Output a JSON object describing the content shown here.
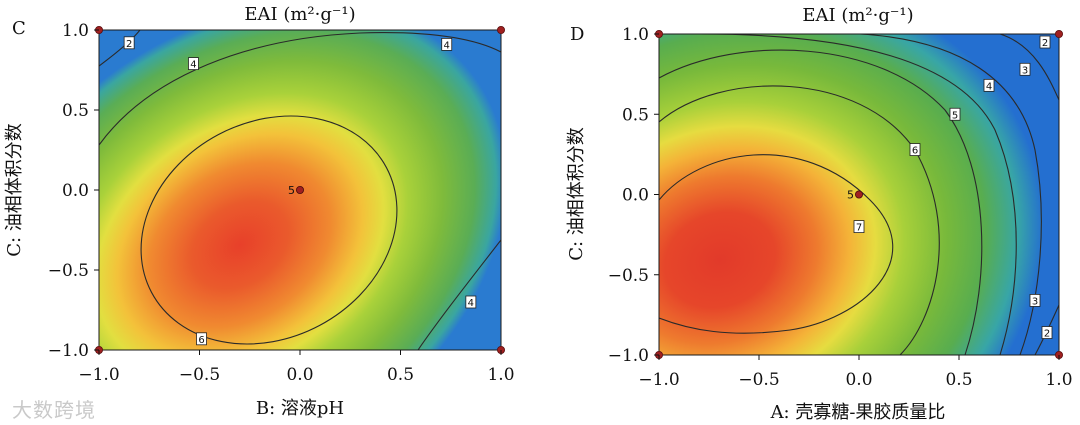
{
  "watermark": "大数跨境",
  "chart_data": [
    {
      "type": "contour",
      "panel_label": "C",
      "title": "EAI (m²·g⁻¹)",
      "xlabel": "B: 溶液pH",
      "ylabel": "C: 油相体积分数",
      "xlim": [
        -1.0,
        1.0
      ],
      "ylim": [
        -1.0,
        1.0
      ],
      "xticks": [
        "−1.0",
        "−0.5",
        "0.0",
        "0.5",
        "1.0"
      ],
      "yticks": [
        "−1.0",
        "−0.5",
        "0.0",
        "0.5",
        "1.0"
      ],
      "center_point": {
        "x": 0.0,
        "y": 0.0,
        "label": "5"
      },
      "contour_labels": [
        {
          "x": -0.85,
          "y": 0.92,
          "label": "2"
        },
        {
          "x": -0.53,
          "y": 0.79,
          "label": "4"
        },
        {
          "x": 0.73,
          "y": 0.91,
          "label": "4"
        },
        {
          "x": 0.85,
          "y": -0.7,
          "label": "4"
        },
        {
          "x": -0.49,
          "y": -0.93,
          "label": "6"
        }
      ],
      "corner_points": [
        {
          "x": -1.0,
          "y": 1.0
        },
        {
          "x": 1.0,
          "y": 1.0
        },
        {
          "x": -1.0,
          "y": -1.0
        },
        {
          "x": 1.0,
          "y": -1.0
        }
      ]
    },
    {
      "type": "contour",
      "panel_label": "D",
      "title": "EAI (m²·g⁻¹)",
      "xlabel": "A: 壳寡糖-果胶质量比",
      "ylabel": "C: 油相体积分数",
      "xlim": [
        -1.0,
        1.0
      ],
      "ylim": [
        -1.0,
        1.0
      ],
      "xticks": [
        "−1.0",
        "−0.5",
        "0.0",
        "0.5",
        "1.0"
      ],
      "yticks": [
        "−1.0",
        "−0.5",
        "0.0",
        "0.5",
        "1.0"
      ],
      "center_point": {
        "x": 0.0,
        "y": 0.0,
        "label": "5"
      },
      "contour_labels": [
        {
          "x": 0.93,
          "y": 0.95,
          "label": "2"
        },
        {
          "x": 0.83,
          "y": 0.78,
          "label": "3"
        },
        {
          "x": 0.65,
          "y": 0.68,
          "label": "4"
        },
        {
          "x": 0.48,
          "y": 0.5,
          "label": "5"
        },
        {
          "x": 0.28,
          "y": 0.28,
          "label": "6"
        },
        {
          "x": 0.0,
          "y": -0.2,
          "label": "7"
        },
        {
          "x": 0.88,
          "y": -0.66,
          "label": "3"
        },
        {
          "x": 0.94,
          "y": -0.86,
          "label": "2"
        }
      ],
      "corner_points": [
        {
          "x": -1.0,
          "y": 1.0
        },
        {
          "x": 1.0,
          "y": 1.0
        },
        {
          "x": -1.0,
          "y": -1.0
        },
        {
          "x": 1.0,
          "y": -1.0
        }
      ]
    }
  ]
}
